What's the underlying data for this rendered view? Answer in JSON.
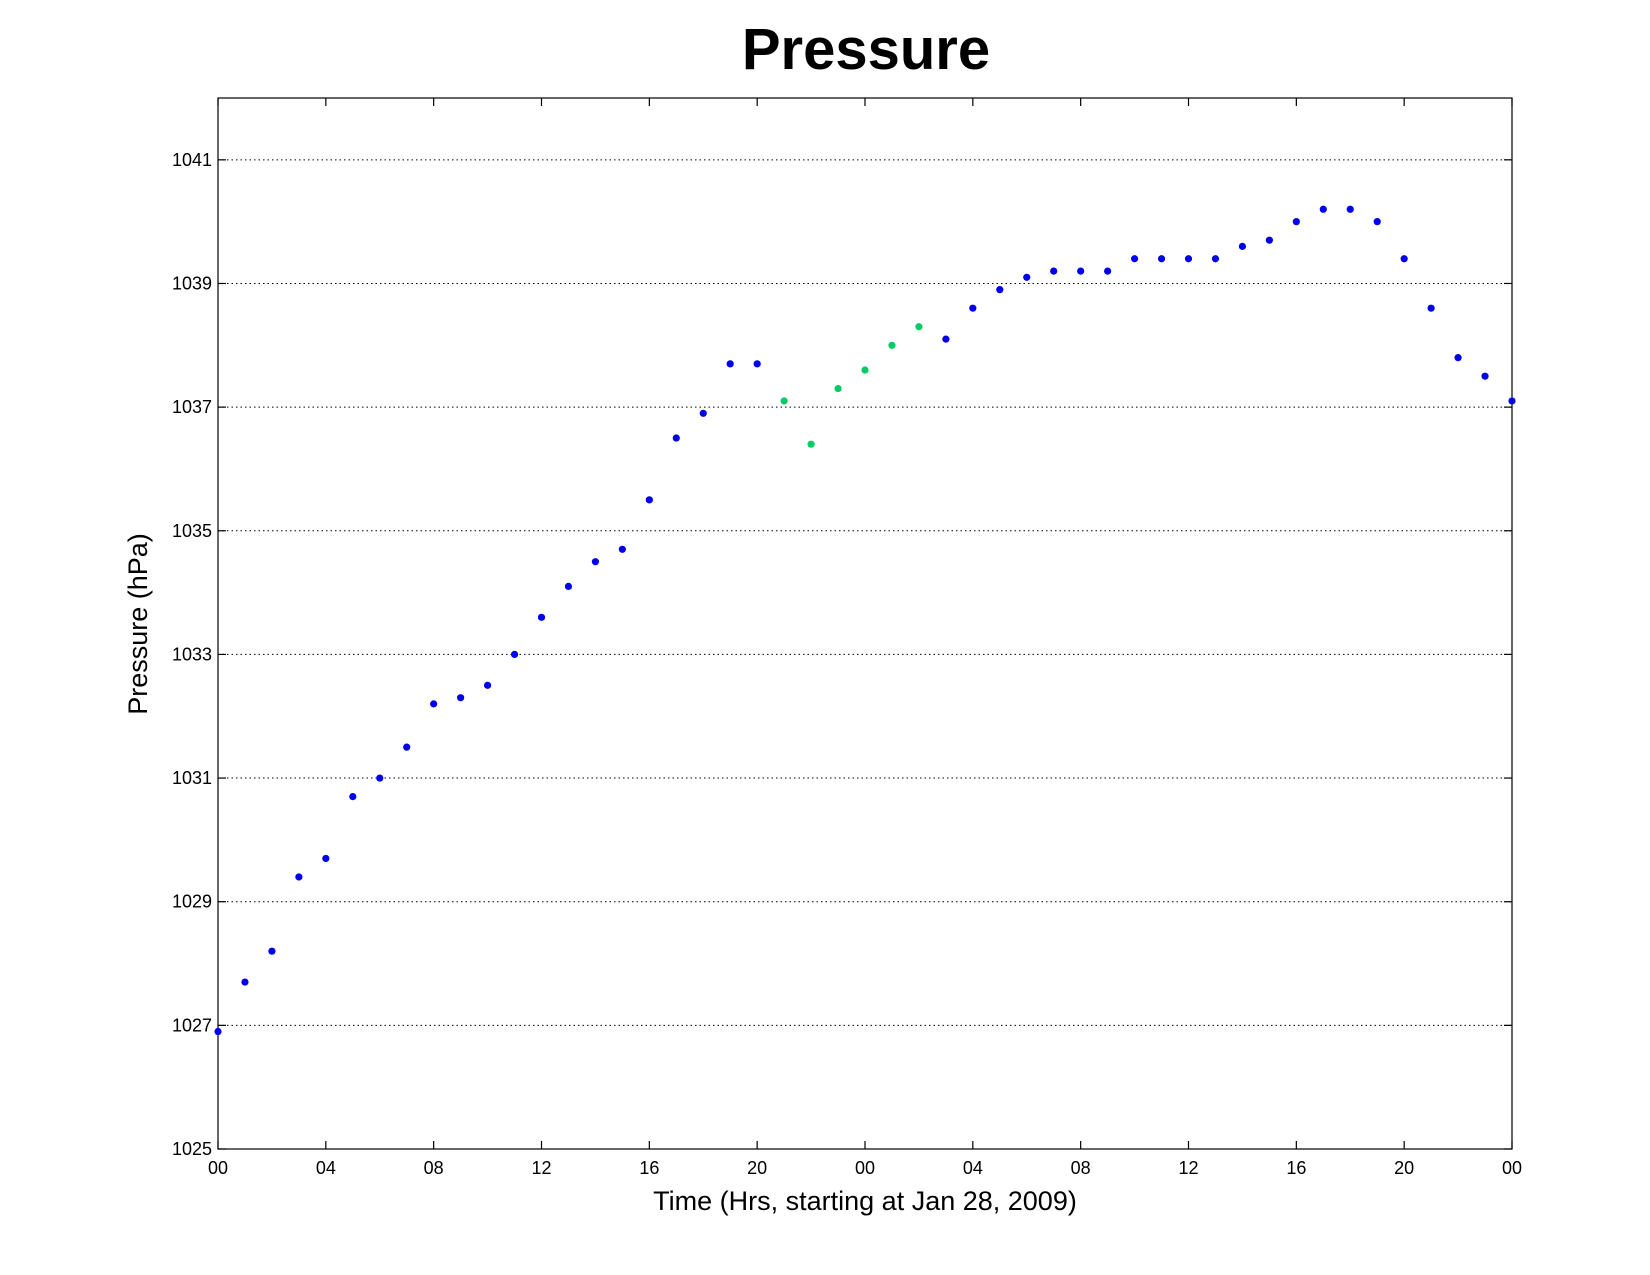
{
  "chart_data": {
    "type": "scatter",
    "title": "Pressure",
    "xlabel": "Time (Hrs, starting at Jan 28, 2009)",
    "ylabel": "Pressure (hPa)",
    "xlim": [
      0,
      48
    ],
    "ylim": [
      1025,
      1042
    ],
    "grid": "horizontal dotted",
    "xticks": {
      "values": [
        0,
        4,
        8,
        12,
        16,
        20,
        24,
        28,
        32,
        36,
        40,
        44,
        48
      ],
      "labels": [
        "00",
        "04",
        "08",
        "12",
        "16",
        "20",
        "00",
        "04",
        "08",
        "12",
        "16",
        "20",
        "00"
      ]
    },
    "yticks": {
      "values": [
        1025,
        1027,
        1029,
        1031,
        1033,
        1035,
        1037,
        1039,
        1041
      ],
      "labels": [
        "1025",
        "1027",
        "1029",
        "1031",
        "1033",
        "1035",
        "1037",
        "1039",
        "1041"
      ]
    },
    "colors": {
      "blue": "#0000ee",
      "green": "#00cc66"
    },
    "series": [
      {
        "color": "#0000ee",
        "x": [
          0,
          1,
          2,
          3,
          4,
          5,
          6,
          7,
          8,
          9,
          10,
          11,
          12,
          13,
          14,
          15,
          16,
          17,
          18,
          19,
          20,
          27,
          28,
          29,
          30,
          31,
          32,
          33,
          34,
          35,
          36,
          37,
          38,
          39,
          40,
          41,
          42,
          43,
          44,
          45,
          46,
          47,
          48
        ],
        "y": [
          1026.9,
          1027.7,
          1028.2,
          1029.4,
          1029.7,
          1030.7,
          1031.0,
          1031.5,
          1032.2,
          1032.3,
          1032.5,
          1033.0,
          1033.6,
          1034.1,
          1034.5,
          1034.7,
          1035.5,
          1036.5,
          1036.9,
          1037.7,
          1037.7,
          1038.1,
          1038.6,
          1038.9,
          1039.1,
          1039.2,
          1039.2,
          1039.2,
          1039.4,
          1039.4,
          1039.4,
          1039.4,
          1039.6,
          1039.7,
          1040.0,
          1040.2,
          1040.2,
          1040.0,
          1039.4,
          1038.6,
          1037.8,
          1037.5,
          1037.1
        ]
      },
      {
        "color": "#00cc66",
        "x": [
          21,
          22,
          23,
          24,
          25,
          26
        ],
        "y": [
          1037.1,
          1036.4,
          1037.3,
          1037.6,
          1038.0,
          1038.3
        ]
      }
    ]
  }
}
